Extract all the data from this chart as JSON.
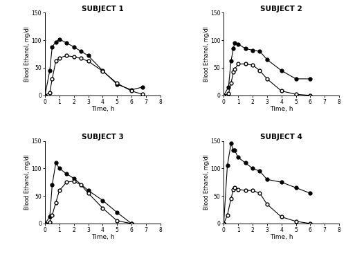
{
  "subjects": [
    "SUBJECT 1",
    "SUBJECT 2",
    "SUBJECT 3",
    "SUBJECT 4"
  ],
  "ylabel": "Blood Ethanol, mg/dl",
  "xlabel": "Time, h",
  "ylim": [
    0,
    150
  ],
  "xlim": [
    0,
    8
  ],
  "yticks": [
    0,
    50,
    100,
    150
  ],
  "xticks": [
    0,
    1,
    2,
    3,
    4,
    5,
    6,
    7,
    8
  ],
  "subject1": {
    "filled": {
      "x": [
        0,
        0.33,
        0.5,
        0.75,
        1.0,
        1.5,
        2.0,
        2.5,
        3.0,
        4.0,
        5.0,
        6.0,
        6.75
      ],
      "y": [
        0,
        45,
        88,
        97,
        102,
        95,
        88,
        80,
        72,
        45,
        20,
        10,
        15
      ]
    },
    "open": {
      "x": [
        0,
        0.33,
        0.5,
        0.75,
        1.0,
        1.5,
        2.0,
        2.5,
        3.0,
        4.0,
        5.0,
        6.0,
        6.75
      ],
      "y": [
        0,
        5,
        30,
        62,
        68,
        72,
        70,
        67,
        62,
        44,
        22,
        8,
        2
      ]
    }
  },
  "subject2": {
    "filled": {
      "x": [
        0,
        0.33,
        0.5,
        0.67,
        0.75,
        1.0,
        1.5,
        2.0,
        2.5,
        3.0,
        4.0,
        5.0,
        6.0
      ],
      "y": [
        0,
        15,
        62,
        85,
        95,
        93,
        85,
        82,
        80,
        65,
        45,
        30,
        30
      ]
    },
    "open": {
      "x": [
        0,
        0.33,
        0.5,
        0.67,
        0.75,
        1.0,
        1.5,
        2.0,
        2.5,
        3.0,
        4.0,
        5.0,
        6.0
      ],
      "y": [
        0,
        3,
        22,
        42,
        47,
        57,
        57,
        55,
        45,
        30,
        8,
        2,
        0
      ]
    }
  },
  "subject3": {
    "filled": {
      "x": [
        0,
        0.33,
        0.5,
        0.75,
        1.0,
        1.5,
        2.0,
        3.0,
        4.0,
        5.0,
        6.0
      ],
      "y": [
        0,
        12,
        70,
        110,
        100,
        90,
        82,
        60,
        42,
        20,
        0
      ]
    },
    "open": {
      "x": [
        0,
        0.33,
        0.5,
        0.75,
        1.0,
        1.5,
        2.0,
        2.5,
        3.0,
        4.0,
        5.0,
        6.0
      ],
      "y": [
        0,
        2,
        15,
        38,
        60,
        75,
        77,
        70,
        55,
        28,
        5,
        0
      ]
    }
  },
  "subject4": {
    "filled": {
      "x": [
        0,
        0.25,
        0.5,
        0.67,
        0.75,
        1.0,
        1.5,
        2.0,
        2.5,
        3.0,
        4.0,
        5.0,
        6.0
      ],
      "y": [
        0,
        105,
        145,
        133,
        133,
        120,
        110,
        100,
        95,
        80,
        75,
        65,
        55
      ]
    },
    "open": {
      "x": [
        0,
        0.25,
        0.5,
        0.67,
        0.75,
        1.0,
        1.5,
        2.0,
        2.5,
        3.0,
        4.0,
        5.0,
        6.0
      ],
      "y": [
        0,
        15,
        45,
        62,
        65,
        62,
        60,
        60,
        55,
        35,
        12,
        4,
        0
      ]
    }
  }
}
